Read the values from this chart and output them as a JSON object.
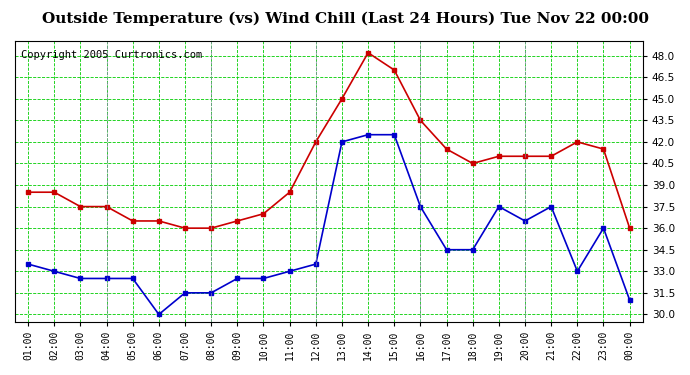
{
  "title": "Outside Temperature (vs) Wind Chill (Last 24 Hours) Tue Nov 22 00:00",
  "copyright": "Copyright 2005 Curtronics.com",
  "x_labels": [
    "01:00",
    "02:00",
    "03:00",
    "04:00",
    "05:00",
    "06:00",
    "07:00",
    "08:00",
    "09:00",
    "10:00",
    "11:00",
    "12:00",
    "13:00",
    "14:00",
    "15:00",
    "16:00",
    "17:00",
    "18:00",
    "19:00",
    "20:00",
    "21:00",
    "22:00",
    "23:00",
    "00:00"
  ],
  "red_data": [
    38.5,
    38.5,
    37.5,
    37.5,
    36.5,
    36.5,
    36.0,
    36.0,
    36.5,
    37.0,
    38.5,
    42.0,
    45.0,
    48.2,
    47.0,
    43.5,
    41.5,
    40.5,
    41.0,
    41.0,
    41.0,
    42.0,
    41.5,
    36.0
  ],
  "blue_data": [
    33.5,
    33.0,
    32.5,
    32.5,
    32.5,
    30.0,
    31.5,
    31.5,
    32.5,
    32.5,
    33.0,
    33.5,
    42.0,
    42.5,
    42.5,
    37.5,
    34.5,
    34.5,
    37.5,
    36.5,
    37.5,
    33.0,
    36.0,
    31.0
  ],
  "ylim": [
    29.5,
    49.0
  ],
  "yticks": [
    30.0,
    31.5,
    33.0,
    34.5,
    36.0,
    37.5,
    39.0,
    40.5,
    42.0,
    43.5,
    45.0,
    46.5,
    48.0
  ],
  "red_color": "#cc0000",
  "blue_color": "#0000cc",
  "bg_color": "#ffffff",
  "plot_bg_color": "#ffffff",
  "grid_color": "#00cc00",
  "title_fontsize": 11,
  "copyright_fontsize": 7.5
}
